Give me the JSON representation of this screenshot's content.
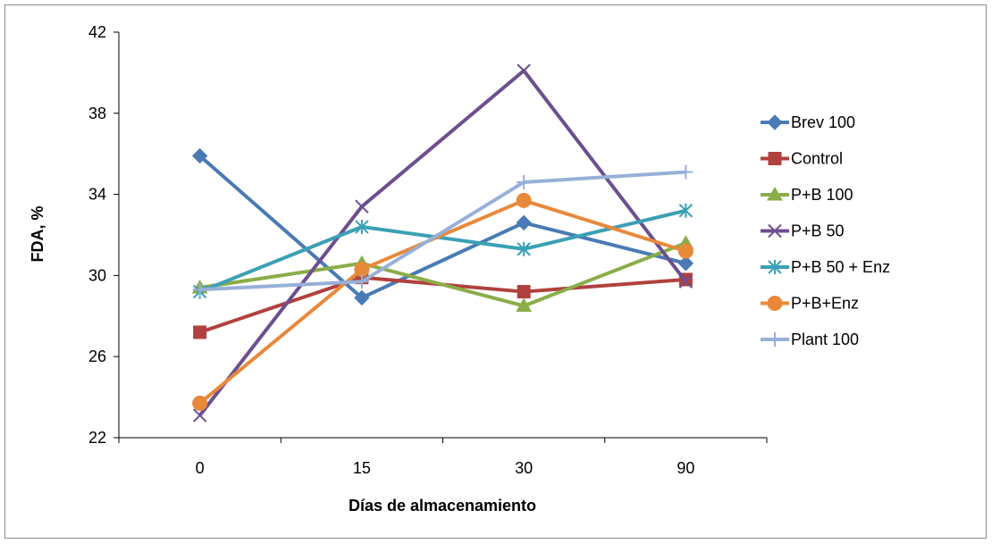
{
  "chart_data": {
    "type": "line",
    "title": "",
    "xlabel": "Días de almacenamiento",
    "ylabel": "FDA, %",
    "categories": [
      "0",
      "15",
      "30",
      "90"
    ],
    "ylim": [
      22,
      42
    ],
    "yticks": [
      22,
      26,
      30,
      34,
      38,
      42
    ],
    "grid": false,
    "legend_position": "right",
    "series": [
      {
        "name": "Brev 100",
        "color": "#4a7ab5",
        "marker": "diamond",
        "values": [
          35.9,
          28.9,
          32.6,
          30.6
        ]
      },
      {
        "name": "Control",
        "color": "#b0413e",
        "marker": "square",
        "values": [
          27.2,
          29.9,
          29.2,
          29.8
        ]
      },
      {
        "name": "P+B 100",
        "color": "#8aad48",
        "marker": "triangle",
        "values": [
          29.4,
          30.6,
          28.5,
          31.6
        ]
      },
      {
        "name": "P+B 50",
        "color": "#6c4f8f",
        "marker": "x",
        "values": [
          23.1,
          33.4,
          40.1,
          29.7
        ]
      },
      {
        "name": "P+B 50 + Enz",
        "color": "#3aa0b5",
        "marker": "asterisk",
        "values": [
          29.2,
          32.4,
          31.3,
          33.2
        ]
      },
      {
        "name": "P+B+Enz",
        "color": "#e8893a",
        "marker": "circle",
        "values": [
          23.7,
          30.3,
          33.7,
          31.2
        ]
      },
      {
        "name": "Plant 100",
        "color": "#97b0d8",
        "marker": "plus",
        "values": [
          29.3,
          29.7,
          34.6,
          35.1
        ]
      }
    ]
  }
}
